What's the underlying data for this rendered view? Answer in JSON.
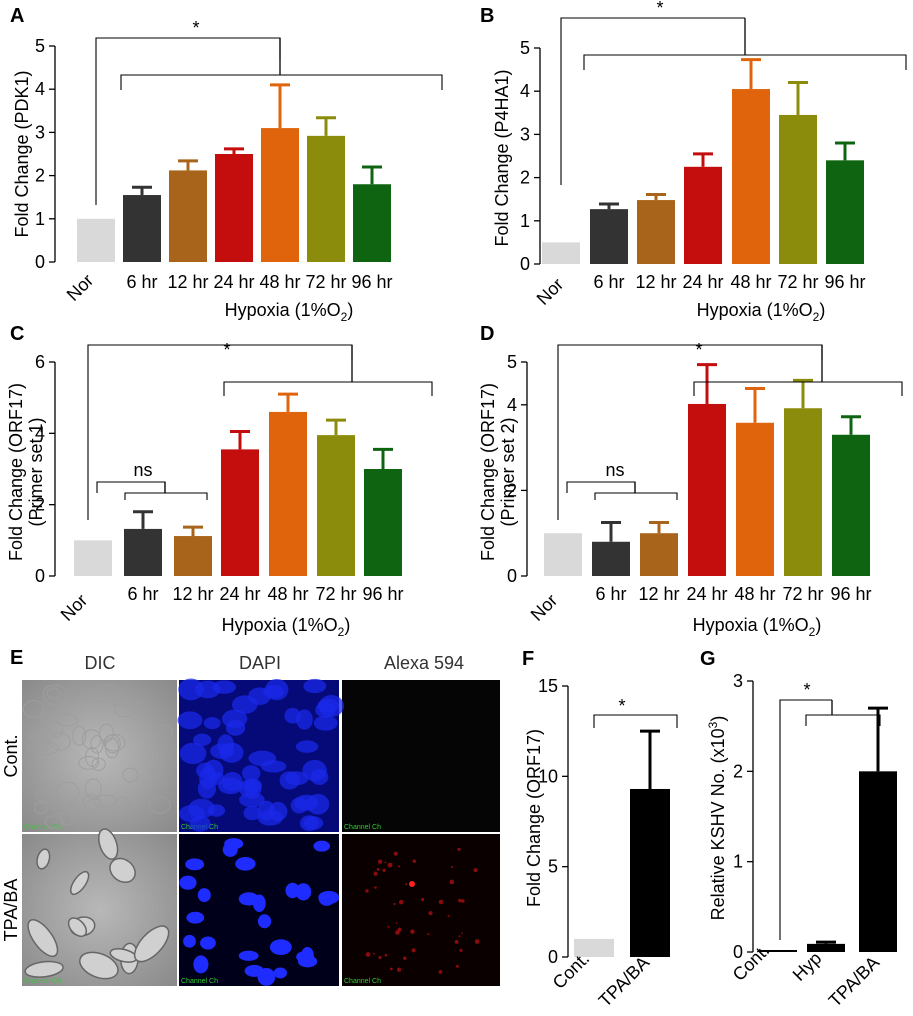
{
  "panel_letters": [
    "A",
    "B",
    "C",
    "D",
    "E",
    "F",
    "G"
  ],
  "significance": {
    "star": "*",
    "ns": "ns"
  },
  "hypoxia_prefix": "Hypoxia (1%O",
  "hypoxia_sub": "2",
  "hypoxia_suffix": ")",
  "bar_colors": [
    "#d9d9d9",
    "#333333",
    "#a8641a",
    "#c40d0d",
    "#e0640c",
    "#8c8c0c",
    "#0e6410"
  ],
  "black_bar": "#000000",
  "time_categories": [
    "Nor",
    "6 hr",
    "12 hr",
    "24 hr",
    "48 hr",
    "72 hr",
    "96 hr"
  ],
  "panel_e": {
    "columns": [
      "DIC",
      "DAPI",
      "Alexa 594"
    ],
    "rows": [
      "Cont.",
      "TPA/BA"
    ],
    "image_label": "Channel Ch"
  },
  "chart_data": [
    {
      "panel": "A",
      "type": "bar",
      "ylabel": "Fold Change (PDK1)",
      "categories": [
        "Nor",
        "6 hr",
        "12 hr",
        "24 hr",
        "48 hr",
        "72 hr",
        "96 hr"
      ],
      "values": [
        1.0,
        1.55,
        2.12,
        2.5,
        3.1,
        2.92,
        1.8
      ],
      "errors": [
        0,
        0.18,
        0.22,
        0.12,
        1.0,
        0.42,
        0.4
      ],
      "ylim": [
        0,
        5
      ],
      "yticks": [
        "0",
        "1",
        "2",
        "3",
        "4",
        "5"
      ]
    },
    {
      "panel": "B",
      "type": "bar",
      "ylabel": "Fold Change (P4HA1)",
      "categories": [
        "Nor",
        "6 hr",
        "12 hr",
        "24 hr",
        "48 hr",
        "72 hr",
        "96 hr"
      ],
      "values": [
        0.5,
        1.27,
        1.48,
        2.25,
        4.05,
        3.45,
        2.4
      ],
      "errors": [
        0,
        0.12,
        0.13,
        0.3,
        0.68,
        0.75,
        0.4
      ],
      "ylim": [
        0,
        5
      ],
      "yticks": [
        "0",
        "1",
        "2",
        "3",
        "4",
        "5"
      ]
    },
    {
      "panel": "C",
      "type": "bar",
      "ylabel": "Fold Change (ORF17)",
      "ylabel2": "(Primer set 1)",
      "categories": [
        "Nor",
        "6 hr",
        "12 hr",
        "24 hr",
        "48 hr",
        "72 hr",
        "96 hr"
      ],
      "values": [
        1.0,
        1.32,
        1.12,
        3.55,
        4.6,
        3.95,
        3.0
      ],
      "errors": [
        0,
        0.48,
        0.25,
        0.5,
        0.5,
        0.42,
        0.55
      ],
      "ylim": [
        0,
        6
      ],
      "yticks": [
        "0",
        "2",
        "4",
        "6"
      ]
    },
    {
      "panel": "D",
      "type": "bar",
      "ylabel": "Fold Change (ORF17)",
      "ylabel2": "(Primer set 2)",
      "categories": [
        "Nor",
        "6 hr",
        "12 hr",
        "24 hr",
        "48 hr",
        "72 hr",
        "96 hr"
      ],
      "values": [
        1.0,
        0.8,
        1.0,
        4.02,
        3.58,
        3.92,
        3.3
      ],
      "errors": [
        0,
        0.45,
        0.25,
        0.92,
        0.8,
        0.65,
        0.42
      ],
      "ylim": [
        0,
        5
      ],
      "yticks": [
        "0",
        "2",
        "4",
        "5"
      ]
    },
    {
      "panel": "F",
      "type": "bar",
      "ylabel": "Fold Change (ORF17)",
      "categories": [
        "Cont.",
        "TPA/BA"
      ],
      "values": [
        1.0,
        9.3
      ],
      "errors": [
        0,
        3.2
      ],
      "ylim": [
        0,
        15
      ],
      "yticks": [
        "0",
        "5",
        "10",
        "15"
      ]
    },
    {
      "panel": "G",
      "type": "bar",
      "ylabel": "Relative KSHV No. (x10",
      "ylabel_sup": "3",
      "ylabel_end": ")",
      "categories": [
        "Cont.",
        "Hyp",
        "TPA/BA"
      ],
      "values": [
        0.0,
        0.09,
        2.0
      ],
      "errors": [
        0,
        0.02,
        0.7
      ],
      "ylim": [
        0,
        3
      ],
      "yticks": [
        "0",
        "1",
        "2",
        "3"
      ]
    }
  ]
}
